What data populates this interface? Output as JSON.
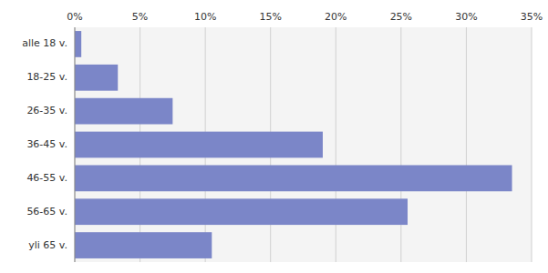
{
  "chart_data": {
    "type": "bar",
    "orientation": "horizontal",
    "categories": [
      "alle 18 v.",
      "18-25 v.",
      "26-35 v.",
      "36-45 v.",
      "46-55 v.",
      "56-65 v.",
      "yli 65 v."
    ],
    "values": [
      0.5,
      3.3,
      7.5,
      19.0,
      33.5,
      25.5,
      10.5
    ],
    "color": "#7b86c8",
    "xlim": [
      0,
      35
    ],
    "xticks": [
      {
        "value": 0,
        "label": "0%"
      },
      {
        "value": 5,
        "label": "5%"
      },
      {
        "value": 10,
        "label": "10%"
      },
      {
        "value": 15,
        "label": "15%"
      },
      {
        "value": 20,
        "label": "20%"
      },
      {
        "value": 25,
        "label": "25%"
      },
      {
        "value": 30,
        "label": "30%"
      },
      {
        "value": 35,
        "label": "35%"
      }
    ],
    "grid": true
  }
}
